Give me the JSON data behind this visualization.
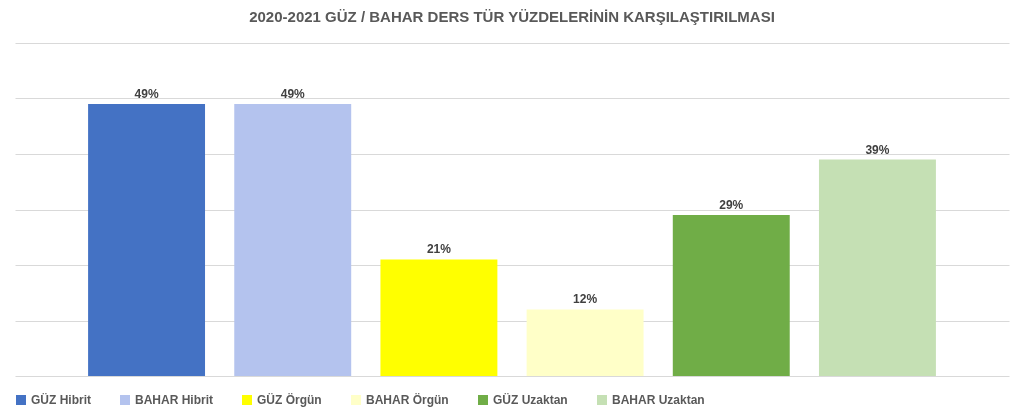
{
  "chart_data": {
    "type": "bar",
    "title": "2020-2021 GÜZ / BAHAR DERS TÜR YÜZDELERİNİN KARŞILAŞTIRILMASI",
    "categories": [
      null,
      null,
      null,
      null,
      null,
      null
    ],
    "series": [
      {
        "name": "GÜZ Hibrit",
        "color": "#4472c4",
        "values": [
          49,
          null,
          null,
          null,
          null,
          null
        ],
        "value_labels": [
          "49%",
          null,
          null,
          null,
          null,
          null
        ]
      },
      {
        "name": "BAHAR Hibrit",
        "color": "#b4c3ee",
        "values": [
          null,
          49,
          null,
          null,
          null,
          null
        ],
        "value_labels": [
          null,
          "49%",
          null,
          null,
          null,
          null
        ]
      },
      {
        "name": "GÜZ Örgün",
        "color": "#ffff00",
        "values": [
          null,
          null,
          21,
          null,
          null,
          null
        ],
        "value_labels": [
          null,
          null,
          "21%",
          null,
          null,
          null
        ]
      },
      {
        "name": "BAHAR Örgün",
        "color": "#ffffc8",
        "values": [
          null,
          null,
          null,
          12,
          null,
          null
        ],
        "value_labels": [
          null,
          null,
          null,
          "12%",
          null,
          null
        ]
      },
      {
        "name": "GÜZ Uzaktan",
        "color": "#70ad47",
        "values": [
          null,
          null,
          null,
          null,
          29,
          null
        ],
        "value_labels": [
          null,
          null,
          null,
          null,
          "29%",
          null
        ]
      },
      {
        "name": "BAHAR Uzaktan",
        "color": "#c5e0b4",
        "values": [
          null,
          null,
          null,
          null,
          null,
          39
        ],
        "value_labels": [
          null,
          null,
          null,
          null,
          null,
          "39%"
        ]
      }
    ],
    "ylim": [
      0,
      60
    ],
    "yticks": [
      {
        "value": 0,
        "label": null
      },
      {
        "value": 10,
        "label": null
      },
      {
        "value": 20,
        "label": null
      },
      {
        "value": 30,
        "label": null
      },
      {
        "value": 40,
        "label": null
      },
      {
        "value": 50,
        "label": null
      },
      {
        "value": 60,
        "label": null
      }
    ],
    "tick_labels": false,
    "grid": "y",
    "legend": "bottom",
    "stacked": true
  }
}
